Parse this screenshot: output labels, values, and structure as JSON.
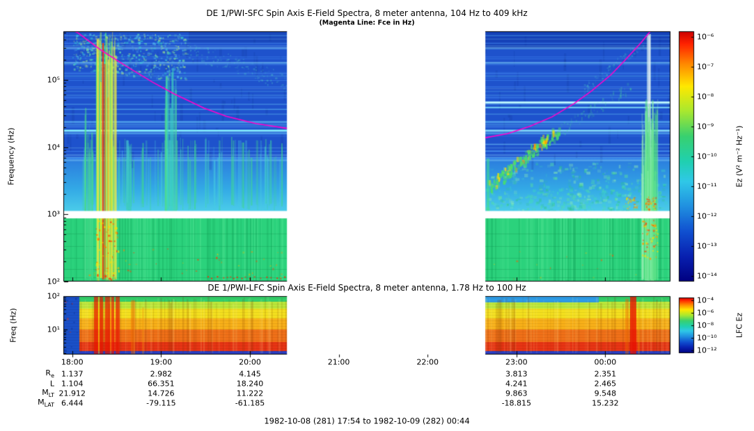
{
  "caption": "1982-10-08 (281) 17:54 to 1982-10-09 (282) 00:44",
  "chart_data": [
    {
      "type": "heatmap",
      "instrument": "DE 1/PWI-SFC",
      "title": "DE 1/PWI-SFC  Spin Axis E-Field Spectra, 8 meter antenna, 104 Hz to 409 kHz",
      "subtitle": "(Magenta Line: Fce in Hz)",
      "ylabel": "Frequency (Hz)",
      "y_scale": "log",
      "y_range_hz": [
        100,
        409000
      ],
      "y_ticks": [
        {
          "label": "10⁵",
          "logf": 5
        },
        {
          "label": "10⁴",
          "logf": 4
        },
        {
          "label": "10³",
          "logf": 3
        },
        {
          "label": "10²",
          "logf": 2
        }
      ],
      "x_start": "17:54",
      "x_end": "00:44",
      "x_span_min": 410,
      "x_ticks": [
        {
          "label": "18:00",
          "t": 6
        },
        {
          "label": "19:00",
          "t": 66
        },
        {
          "label": "20:00",
          "t": 126
        },
        {
          "label": "21:00",
          "t": 186
        },
        {
          "label": "22:00",
          "t": 246
        },
        {
          "label": "23:00",
          "t": 306
        },
        {
          "label": "00:00",
          "t": 366
        }
      ],
      "colorbar": {
        "label": "Ez (V² m⁻² Hz⁻¹)",
        "ticks": [
          "10⁻⁶",
          "10⁻⁷",
          "10⁻⁸",
          "10⁻⁹",
          "10⁻¹⁰",
          "10⁻¹¹",
          "10⁻¹²",
          "10⁻¹³",
          "10⁻¹⁴"
        ]
      },
      "data_gap": {
        "t_start": 151,
        "t_end": 285
      },
      "fce_color": "#ff00cc",
      "fce_line_segments": [
        [
          [
            0,
            5.8
          ],
          [
            10,
            5.7
          ],
          [
            25,
            5.45
          ],
          [
            42,
            5.21
          ],
          [
            60,
            4.97
          ],
          [
            75,
            4.79
          ],
          [
            95,
            4.58
          ],
          [
            110,
            4.46
          ],
          [
            130,
            4.35
          ],
          [
            151,
            4.28
          ]
        ],
        [
          [
            285,
            4.14
          ],
          [
            300,
            4.2
          ],
          [
            315,
            4.31
          ],
          [
            330,
            4.45
          ],
          [
            345,
            4.65
          ],
          [
            357,
            4.84
          ],
          [
            370,
            5.08
          ],
          [
            380,
            5.31
          ],
          [
            390,
            5.55
          ],
          [
            397,
            5.74
          ]
        ]
      ],
      "features": [
        "intense broadband burst near 18:20 spanning all frequencies",
        "auroral kilometric radiation patch 18:05-19:10 above 100 kHz",
        "continuous green emission band below 1 kHz",
        "white instrumental band at 1 kHz",
        "horizontal narrowband interference lines (cyan stripes)",
        "rising emission feature 22:40-23:30 from ~5 kHz to ~20 kHz",
        "intense burst near 00:30 spanning all frequencies",
        "white data gap ~20:25 to ~22:39"
      ]
    },
    {
      "type": "heatmap",
      "instrument": "DE 1/PWI-LFC",
      "title": "DE 1/PWI-LFC  Spin Axis E-Field Spectra, 8 meter antenna, 1.78 Hz to 100 Hz",
      "ylabel": "Freq (Hz)",
      "y_scale": "log",
      "y_range_hz": [
        1.78,
        100
      ],
      "y_ticks": [
        {
          "label": "10²",
          "logf": 2
        },
        {
          "label": "10¹",
          "logf": 1
        }
      ],
      "colorbar": {
        "label": "LFC Ez",
        "ticks": [
          "10⁻⁴",
          "10⁻⁶",
          "10⁻⁸",
          "10⁻¹⁰",
          "10⁻¹²"
        ]
      },
      "data_gap": {
        "t_start": 151,
        "t_end": 285
      },
      "features": [
        "broadband ELF noise, intensity increasing toward lower frequencies (red at bottom)",
        "intense red bursts 18:20-18:40 and near 00:15",
        "blue quiet interval before 18:05",
        "white data gap ~20:25 to ~22:39"
      ]
    }
  ],
  "ephemeris": {
    "columns": [
      "18:00",
      "19:00",
      "20:00",
      "21:00",
      "22:00",
      "23:00",
      "00:00"
    ],
    "rows": [
      {
        "label": "R",
        "sub": "e",
        "values": [
          "1.137",
          "2.982",
          "4.145",
          "",
          "",
          "3.813",
          "2.351"
        ]
      },
      {
        "label": "L",
        "sub": "",
        "values": [
          "1.104",
          "66.351",
          "18.240",
          "",
          "",
          "4.241",
          "2.465"
        ]
      },
      {
        "label": "M",
        "sub": "LT",
        "values": [
          "21.912",
          "14.726",
          "11.222",
          "",
          "",
          "9.863",
          "9.548"
        ]
      },
      {
        "label": "M",
        "sub": "LAT",
        "values": [
          "6.444",
          "-79.115",
          "-61.185",
          "",
          "",
          "-18.815",
          "15.232"
        ]
      }
    ]
  }
}
